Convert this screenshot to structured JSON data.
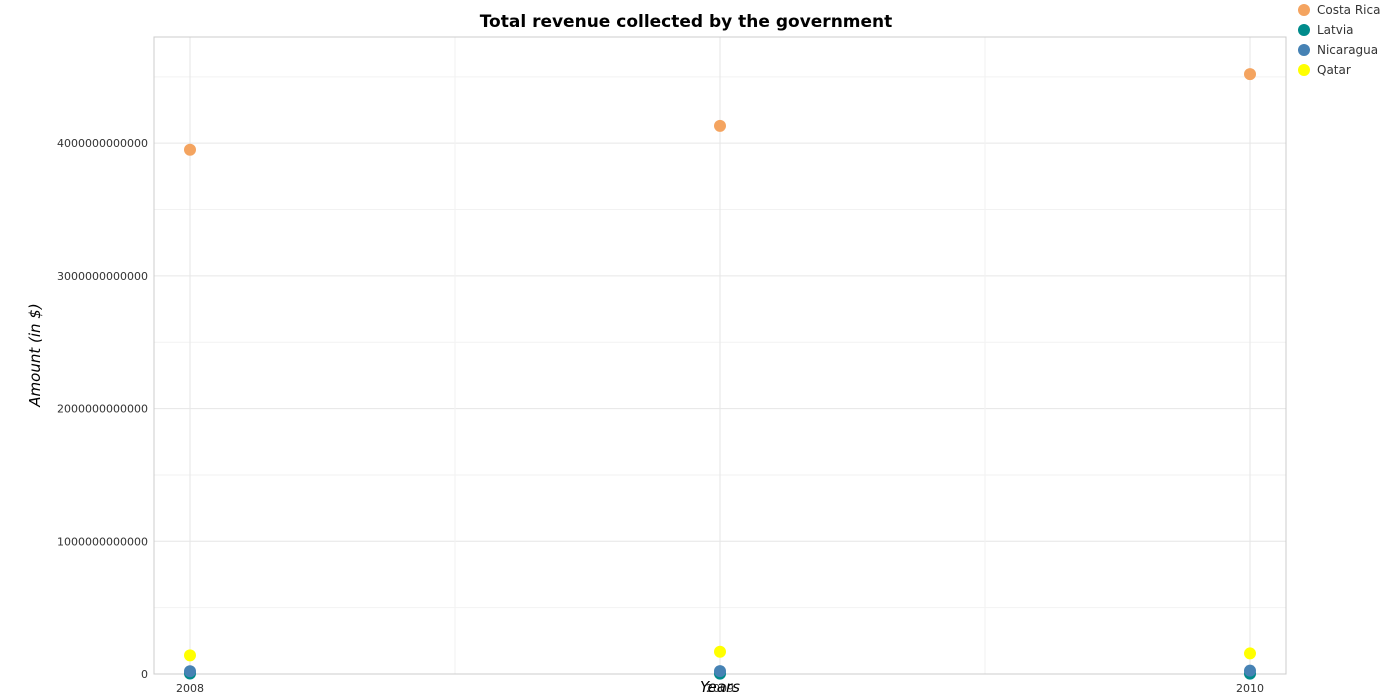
{
  "chart_data": {
    "type": "scatter",
    "title": "Total revenue collected by the government",
    "xlabel": "Years",
    "ylabel": "Amount (in $)",
    "categories": [
      "2008",
      "2009",
      "2010"
    ],
    "ylim": [
      0,
      4800000000000
    ],
    "yticks": [
      {
        "value": 0,
        "label": "0"
      },
      {
        "value": 1000000000000,
        "label": "1000000000000"
      },
      {
        "value": 2000000000000,
        "label": "2000000000000"
      },
      {
        "value": 3000000000000,
        "label": "3000000000000"
      },
      {
        "value": 4000000000000,
        "label": "4000000000000"
      }
    ],
    "grid": true,
    "legend_position": "top-right",
    "series": [
      {
        "name": "Costa Rica",
        "color": "#f4a460",
        "values": [
          3950000000000,
          4130000000000,
          4520000000000
        ]
      },
      {
        "name": "Latvia",
        "color": "#008b8b",
        "values": [
          3500000000,
          2800000000,
          2900000000
        ]
      },
      {
        "name": "Nicaragua",
        "color": "#4682b4",
        "values": [
          21000000000,
          22000000000,
          25000000000
        ]
      },
      {
        "name": "Qatar",
        "color": "#ffff00",
        "values": [
          140000000000,
          168000000000,
          155000000000
        ]
      }
    ]
  }
}
